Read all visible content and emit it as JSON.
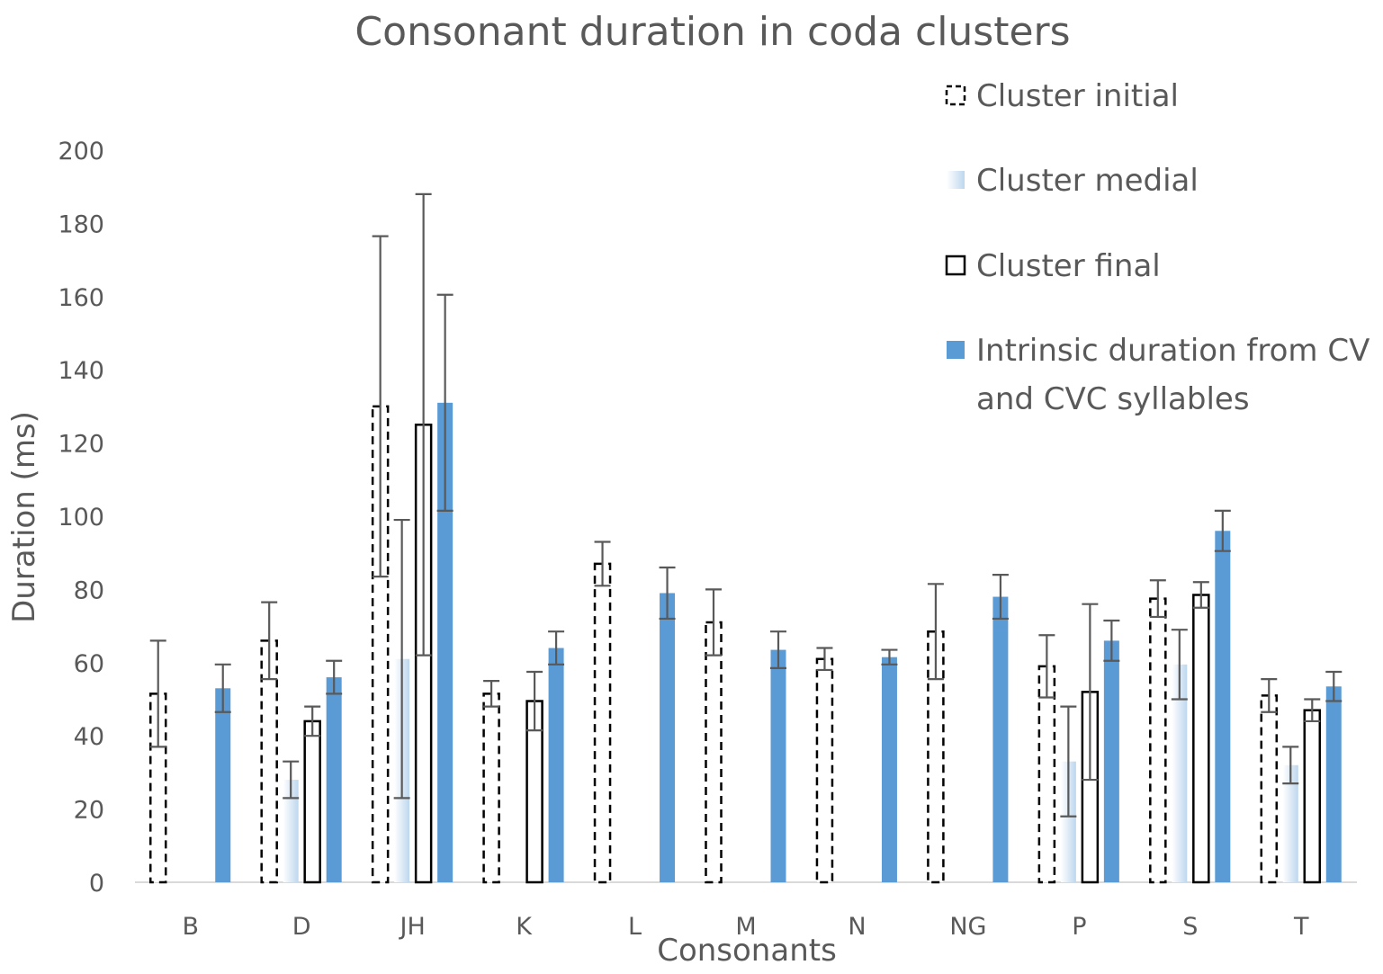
{
  "chart_data": {
    "type": "bar",
    "title": "Consonant duration in coda clusters",
    "xlabel": "Consonants",
    "ylabel": "Duration (ms)",
    "ylim": [
      0,
      200
    ],
    "yticks": [
      0,
      20,
      40,
      60,
      80,
      100,
      120,
      140,
      160,
      180,
      200
    ],
    "grid": false,
    "legend_position": "top-right",
    "categories": [
      "B",
      "D",
      "JH",
      "K",
      "L",
      "M",
      "N",
      "NG",
      "P",
      "S",
      "T"
    ],
    "series": [
      {
        "name": "Cluster initial",
        "style": "dashed-outline",
        "color": "#000000",
        "values": [
          51.5,
          66,
          130,
          51.5,
          87,
          71,
          61,
          68.5,
          59,
          77.5,
          51
        ],
        "error": [
          14.5,
          10.5,
          46.5,
          3.5,
          6,
          9,
          3,
          13,
          8.5,
          5,
          4.5
        ]
      },
      {
        "name": "Cluster medial",
        "style": "gradient",
        "color": "#bdd7ee",
        "values": [
          null,
          28,
          61,
          null,
          null,
          null,
          null,
          null,
          33,
          59.5,
          32
        ],
        "error": [
          null,
          5,
          38,
          null,
          null,
          null,
          null,
          null,
          15,
          9.5,
          5
        ]
      },
      {
        "name": "Cluster final",
        "style": "outline",
        "color": "#000000",
        "values": [
          null,
          44,
          125,
          49.5,
          null,
          null,
          null,
          null,
          52,
          78.5,
          47
        ],
        "error": [
          null,
          4,
          63,
          8,
          null,
          null,
          null,
          null,
          24,
          3.5,
          3
        ]
      },
      {
        "name": "Intrinsic duration from CV and CVC syllables",
        "name_lines": [
          "Intrinsic duration from CV",
          "and CVC syllables"
        ],
        "style": "solid",
        "color": "#5b9bd5",
        "values": [
          53,
          56,
          131,
          64,
          79,
          63.5,
          61.5,
          78,
          66,
          96,
          53.5
        ],
        "error": [
          6.5,
          4.5,
          29.5,
          4.5,
          7,
          5,
          2,
          6,
          5.5,
          5.5,
          4
        ]
      }
    ]
  }
}
